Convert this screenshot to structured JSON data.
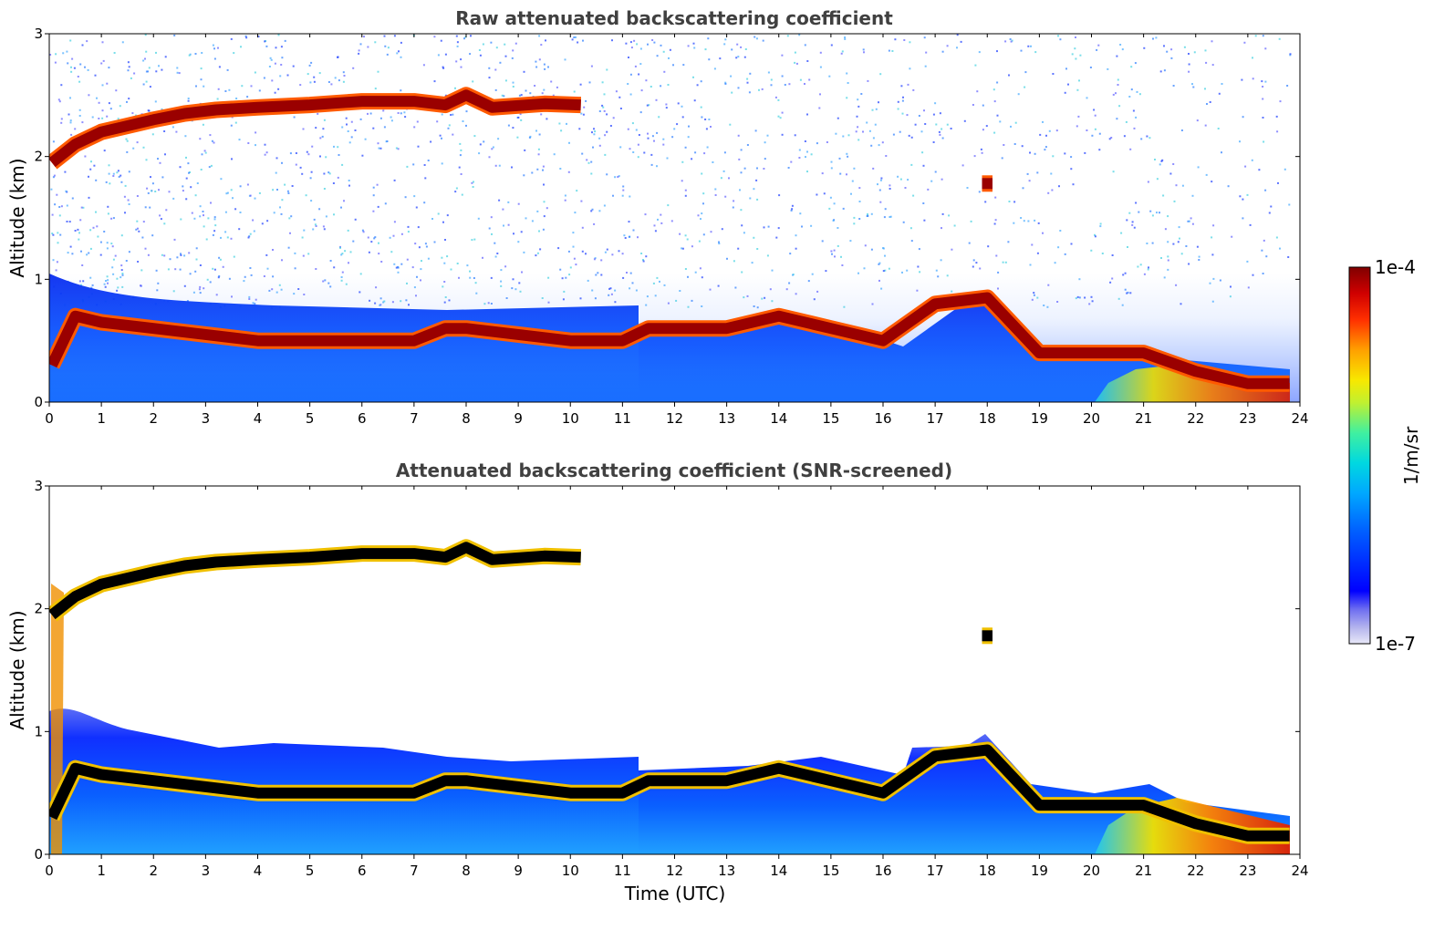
{
  "chart_data": [
    {
      "type": "heatmap",
      "title": "Raw attenuated backscattering coefficient",
      "xlabel": "",
      "ylabel": "Altitude (km)",
      "xlim": [
        0,
        24
      ],
      "ylim": [
        0,
        3
      ],
      "xticks": [
        "0",
        "1",
        "2",
        "3",
        "4",
        "5",
        "6",
        "7",
        "8",
        "9",
        "10",
        "11",
        "12",
        "13",
        "14",
        "15",
        "16",
        "17",
        "18",
        "19",
        "20",
        "21",
        "22",
        "23",
        "24"
      ],
      "yticks": [
        "0",
        "1",
        "2",
        "3"
      ],
      "layers": [
        {
          "name": "boundary_layer_top",
          "x": [
            0.05,
            0.5,
            1,
            2,
            3,
            4,
            5,
            6,
            7,
            7.6,
            8,
            9,
            10,
            11,
            11.5,
            12,
            13,
            14,
            15,
            16,
            17,
            18,
            19,
            20,
            21,
            22,
            23,
            23.8
          ],
          "y": [
            0.3,
            0.7,
            0.65,
            0.6,
            0.55,
            0.5,
            0.5,
            0.5,
            0.5,
            0.6,
            0.6,
            0.55,
            0.5,
            0.5,
            0.6,
            0.6,
            0.6,
            0.7,
            0.6,
            0.5,
            0.8,
            0.85,
            0.4,
            0.4,
            0.4,
            0.25,
            0.15,
            0.15
          ]
        },
        {
          "name": "cloud_layer",
          "x": [
            0.05,
            0.5,
            1,
            2,
            2.6,
            3.2,
            4,
            5,
            6,
            7,
            7.6,
            8,
            8.5,
            9.5,
            10.2
          ],
          "y": [
            1.95,
            2.1,
            2.2,
            2.3,
            2.35,
            2.38,
            2.4,
            2.42,
            2.45,
            2.45,
            2.42,
            2.5,
            2.4,
            2.43,
            2.42
          ]
        },
        {
          "name": "cloud_patch",
          "x": [
            17.9,
            18.1
          ],
          "y": [
            1.78,
            1.78
          ]
        }
      ]
    },
    {
      "type": "heatmap",
      "title": "Attenuated backscattering coefficient (SNR-screened)",
      "xlabel": "Time (UTC)",
      "ylabel": "Altitude (km)",
      "xlim": [
        0,
        24
      ],
      "ylim": [
        0,
        3
      ],
      "xticks": [
        "0",
        "1",
        "2",
        "3",
        "4",
        "5",
        "6",
        "7",
        "8",
        "9",
        "10",
        "11",
        "12",
        "13",
        "14",
        "15",
        "16",
        "17",
        "18",
        "19",
        "20",
        "21",
        "22",
        "23",
        "24"
      ],
      "yticks": [
        "0",
        "1",
        "2",
        "3"
      ]
    }
  ],
  "colorbar": {
    "max_label": "1e-4",
    "min_label": "1e-7",
    "unit_label": "1/m/sr",
    "colors": [
      "#e8e8f8",
      "#c8c8f0",
      "#a0a0e8",
      "#0000ff",
      "#0040ff",
      "#0090ff",
      "#00c0ff",
      "#20e0c0",
      "#90f060",
      "#f0f000",
      "#ffa000",
      "#ff3000",
      "#c00000",
      "#800000"
    ]
  }
}
